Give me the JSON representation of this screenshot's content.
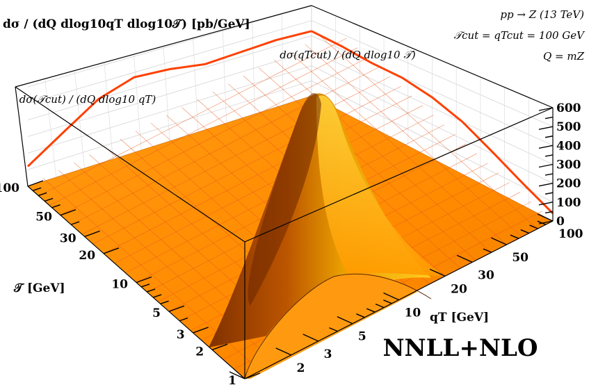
{
  "chart_data": {
    "type": "surface3d",
    "title": "NNLL+NLO",
    "process": "pp → Z (13 TeV)",
    "cut": "𝒯cut = qTcut = 100 GeV",
    "scale": "Q = mZ",
    "zlabel": "dσ / (dQ dlog10qT dlog10𝒯) [pb/GeV]",
    "xlabel": "qT [GeV]",
    "ylabel": "𝒯 [GeV]",
    "x_ticks": [
      "1",
      "2",
      "3",
      "5",
      "10",
      "20",
      "30",
      "50",
      "100"
    ],
    "y_ticks": [
      "1",
      "2",
      "3",
      "5",
      "10",
      "20",
      "30",
      "50",
      "100"
    ],
    "z_ticks": [
      "0",
      "100",
      "200",
      "300",
      "400",
      "500",
      "600"
    ],
    "zlim": [
      0,
      600
    ],
    "xlim_log10": [
      0,
      2
    ],
    "ylim_log10": [
      0,
      2
    ],
    "surface_peak": {
      "log10_qT": 0.75,
      "log10_T": 0.85,
      "value": 600
    },
    "projection_Tcut": {
      "label": "dσ(𝒯cut) / (dQ dlog10 qT)",
      "x_log10": [
        0.0,
        0.25,
        0.5,
        0.75,
        1.0,
        1.25,
        1.5,
        1.75,
        2.0
      ],
      "values": [
        120,
        260,
        400,
        470,
        455,
        420,
        430,
        440,
        430
      ]
    },
    "projection_qTcut": {
      "label": "dσ(qTcut) / (dQ dlog10 𝒯)",
      "y_log10": [
        0.0,
        0.25,
        0.5,
        0.75,
        1.0,
        1.25,
        1.5,
        1.75,
        2.0
      ],
      "values": [
        430,
        420,
        400,
        395,
        360,
        300,
        210,
        120,
        40
      ]
    },
    "colors": {
      "surface_low": "#ff8c00",
      "surface_high": "#ffd000",
      "shadow": "#8a3a00",
      "curve": "#ff4500",
      "mesh": "#e8561a"
    }
  }
}
